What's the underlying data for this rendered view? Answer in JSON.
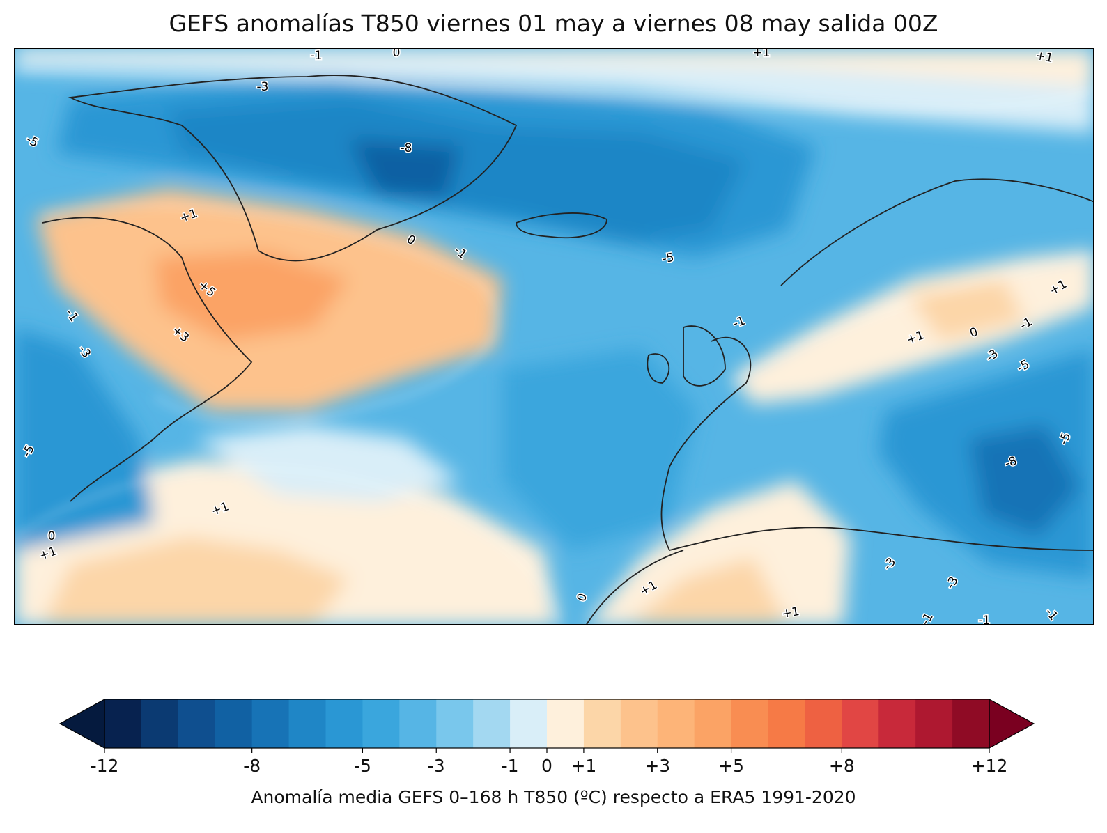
{
  "title": "GEFS anomalías T850 viernes 01 may a viernes 08 may salida 00Z",
  "colorbar": {
    "label": "Anomalía media GEFS 0–168 h T850 (ºC) respecto a ERA5 1991-2020",
    "levels": [
      -12,
      -11,
      -10,
      -9,
      -8,
      -7,
      -6,
      -5,
      -4,
      -3,
      -2,
      -1,
      0,
      1,
      2,
      3,
      4,
      5,
      6,
      7,
      8,
      9,
      10,
      11,
      12
    ],
    "colors": [
      "#07224f",
      "#0b3a72",
      "#0f4f8f",
      "#1161a3",
      "#1773b6",
      "#1f86c6",
      "#2a97d4",
      "#3aa6dd",
      "#56b5e5",
      "#79c7ec",
      "#a3d8f1",
      "#d9eef8",
      "#fef0dc",
      "#fcd6a8",
      "#fdc28c",
      "#fdb478",
      "#fba365",
      "#f98d52",
      "#f67a46",
      "#ee6142",
      "#e14644",
      "#c8293a",
      "#ae1830",
      "#8f0b25"
    ],
    "under_color": "#051a3e",
    "over_color": "#7a0020",
    "ticks": [
      {
        "value": -12,
        "label": "-12"
      },
      {
        "value": -8,
        "label": "-8"
      },
      {
        "value": -5,
        "label": "-5"
      },
      {
        "value": -3,
        "label": "-3"
      },
      {
        "value": -1,
        "label": "-1"
      },
      {
        "value": 0,
        "label": "0"
      },
      {
        "value": 1,
        "label": "+1"
      },
      {
        "value": 3,
        "label": "+3"
      },
      {
        "value": 5,
        "label": "+5"
      },
      {
        "value": 8,
        "label": "+8"
      },
      {
        "value": 12,
        "label": "+12"
      }
    ]
  },
  "contour_labels": [
    "-1",
    "0",
    "+1",
    "+1",
    "-3",
    "-5",
    "-8",
    "+1",
    "0",
    "-1",
    "-5",
    "+5",
    "+3",
    "-1",
    "-3",
    "-1",
    "+1",
    "0",
    "-1",
    "+1",
    "-3",
    "-5",
    "-5",
    "-8",
    "-5",
    "+1",
    "0",
    "+1",
    "-3",
    "+1",
    "0",
    "+1",
    "-3",
    "-1",
    "-1",
    "-1"
  ]
}
